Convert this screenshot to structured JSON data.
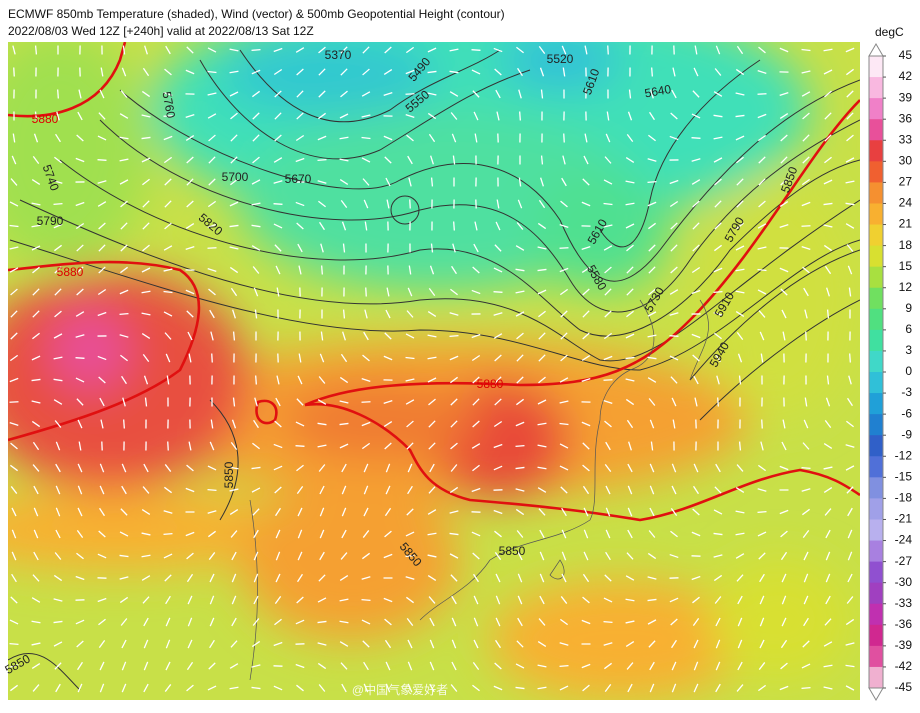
{
  "header": {
    "title": "ECMWF 850mb Temperature (shaded), Wind (vector) & 500mb Geopotential Height (contour)",
    "subtitle": "2022/08/03 Wed 12Z [+240h] valid at 2022/08/13 Sat 12Z"
  },
  "colorbar": {
    "unit": "degC",
    "ticks": [
      45,
      42,
      39,
      36,
      33,
      30,
      27,
      24,
      21,
      18,
      15,
      12,
      9,
      6,
      3,
      0,
      -3,
      -6,
      -9,
      -12,
      -15,
      -18,
      -21,
      -24,
      -27,
      -30,
      -33,
      -36,
      -39,
      -42,
      -45
    ],
    "colors": [
      "#fde8f5",
      "#f9b8e0",
      "#f080c8",
      "#e8509a",
      "#e84040",
      "#f06030",
      "#f59030",
      "#f8b030",
      "#f0d030",
      "#d8e030",
      "#a8e040",
      "#70e060",
      "#50e080",
      "#40e0a0",
      "#40d8c8",
      "#30c0d8",
      "#20a0d8",
      "#2080d0",
      "#3060c8",
      "#5070d8",
      "#8090e0",
      "#a0a0e8",
      "#b8b0ee",
      "#a880e0",
      "#9050d0",
      "#a040c0",
      "#c030b0",
      "#d02890",
      "#e050a0",
      "#f0b0d0"
    ]
  },
  "contour_labels": [
    "5370",
    "5490",
    "5520",
    "5610",
    "5640",
    "5550",
    "5760",
    "5880",
    "5740",
    "5700",
    "5670",
    "5790",
    "5820",
    "5880",
    "5610",
    "5580",
    "5730",
    "5910",
    "5850",
    "5790",
    "5940",
    "5880",
    "5850",
    "5850",
    "5850",
    "5850"
  ],
  "watermark": "@中国气象爱好者"
}
